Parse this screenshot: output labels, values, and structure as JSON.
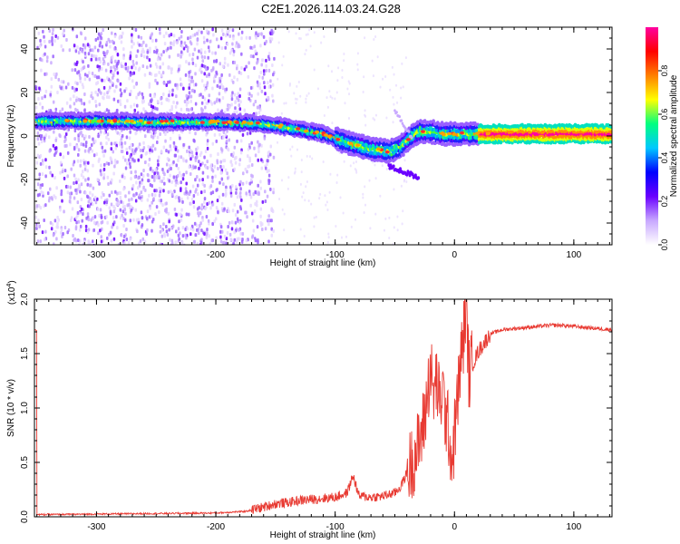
{
  "chart_data": [
    {
      "type": "heatmap",
      "title": "C2E1.2026.114.03.24.G28",
      "xlabel": "Height of straight line (km)",
      "ylabel": "Frequency (Hz)",
      "xlim": [
        -352,
        132
      ],
      "ylim": [
        -50,
        50
      ],
      "xticks": [
        -300,
        -200,
        -100,
        0,
        100
      ],
      "xtick_labels": [
        "-300",
        "-200",
        "-100",
        "0",
        "100"
      ],
      "yticks": [
        -40,
        -20,
        0,
        20,
        40
      ],
      "ytick_labels": [
        "-40",
        "-20",
        "0",
        "20",
        "40"
      ],
      "colorbar": {
        "label": "Normalized spectral amplitude",
        "range": [
          0,
          1
        ],
        "ticks": [
          0.0,
          0.2,
          0.4,
          0.6,
          0.8
        ],
        "tick_labels": [
          "0.0",
          "0.2",
          "0.4",
          "0.6",
          "0.8"
        ],
        "colors": [
          "#ffffff",
          "#c8a8ff",
          "#6a00ff",
          "#0000ff",
          "#00c8ff",
          "#00ff80",
          "#ffff00",
          "#ff8000",
          "#ff0000",
          "#ff00a0"
        ]
      },
      "ridge": {
        "x": [
          -350,
          -300,
          -250,
          -200,
          -170,
          -150,
          -130,
          -110,
          -90,
          -70,
          -55,
          -45,
          -40,
          -30,
          -20,
          -10,
          0,
          20,
          50,
          80,
          110,
          132
        ],
        "y": [
          7,
          7,
          6.5,
          6.5,
          6,
          5,
          3,
          1,
          -3,
          -6,
          -7,
          -5,
          -2,
          2,
          2,
          1,
          1,
          1,
          1,
          1,
          1,
          1
        ]
      },
      "grid": false
    },
    {
      "type": "line",
      "title": "",
      "xlabel": "Height of straight line (km)",
      "ylabel": "SNR (10 * v/v)",
      "y_scale_label": "(x10",
      "y_scale_exp": "4",
      "y_scale_close": ")",
      "xlim": [
        -352,
        132
      ],
      "ylim": [
        0,
        20000
      ],
      "xticks": [
        -300,
        -200,
        -100,
        0,
        100
      ],
      "xtick_labels": [
        "-300",
        "-200",
        "-100",
        "0",
        "100"
      ],
      "yticks": [
        0,
        5000,
        10000,
        15000,
        20000
      ],
      "ytick_labels": [
        "0.0",
        "0.5",
        "1.0",
        "1.5",
        "2.0"
      ],
      "color": "#e83a32",
      "series": [
        {
          "x": [
            -350,
            -300,
            -250,
            -200,
            -175,
            -160,
            -150,
            -140,
            -130,
            -120,
            -110,
            -100,
            -90,
            -85,
            -80,
            -70,
            -60,
            -50,
            -45,
            -40,
            -35,
            -30,
            -25,
            -22,
            -20,
            -18,
            -15,
            -12,
            -10,
            -8,
            -5,
            -2,
            0,
            5,
            8,
            10,
            12,
            15,
            20,
            25,
            30,
            40,
            50,
            60,
            70,
            80,
            90,
            100,
            110,
            120,
            132
          ],
          "y": [
            200,
            250,
            300,
            350,
            500,
            900,
            1200,
            1300,
            1500,
            1600,
            1700,
            1800,
            2200,
            3800,
            1900,
            1800,
            1900,
            2200,
            2800,
            4000,
            5200,
            6500,
            9000,
            12000,
            14000,
            11000,
            12500,
            10000,
            12000,
            9500,
            8000,
            5000,
            7500,
            14000,
            17000,
            20000,
            13000,
            14000,
            15200,
            16000,
            16800,
            17200,
            17300,
            17400,
            17500,
            17600,
            17600,
            17500,
            17400,
            17300,
            17200
          ]
        }
      ],
      "grid": false
    }
  ]
}
